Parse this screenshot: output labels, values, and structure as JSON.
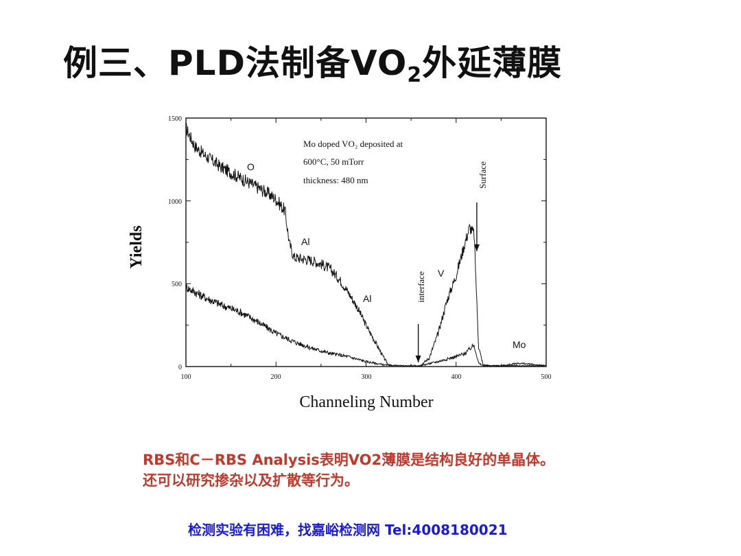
{
  "slide": {
    "title_pre": "例三、PLD法制备VO",
    "title_sub": "2",
    "title_post": "外延薄膜",
    "caption_line1": "RBS和C－RBS Analysis表明VO2薄膜是结构良好的单晶体。",
    "caption_line2": "还可以研究掺杂以及扩散等行为。",
    "footer": "检测实验有困难，找嘉峪检测网 Tel:4008180021",
    "colors": {
      "caption": "#c0392b",
      "footer": "#1a1ad9",
      "title": "#111111"
    }
  },
  "chart_data": {
    "type": "line",
    "title": "",
    "xlabel": "Channeling Number",
    "ylabel": "Yields",
    "xlim": [
      100,
      500
    ],
    "ylim": [
      0,
      1500
    ],
    "x_ticks": [
      "100",
      "200",
      "300",
      "400",
      "500"
    ],
    "y_ticks": [
      "0",
      "500",
      "1000",
      "1500"
    ],
    "annotation_lines": [
      "Mo doped VO₂ deposited at",
      "600°C, 50 mTorr",
      "thickness: 480 nm"
    ],
    "curve_labels": {
      "o": "O",
      "al_upper": "Al",
      "al_lower": "Al",
      "v": "V",
      "mo": "Mo",
      "interface": "interface",
      "surface": "Surface"
    },
    "arrows": {
      "interface_x": 358,
      "surface_x": 423
    },
    "series": [
      {
        "x": [
          100,
          110,
          120,
          130,
          140,
          150,
          160,
          170,
          180,
          190,
          200,
          210,
          215,
          220,
          230,
          240,
          250,
          260,
          270,
          280,
          290,
          300,
          310,
          320,
          325,
          330,
          340,
          350,
          360,
          370,
          380,
          390,
          400,
          410,
          415,
          420,
          425,
          430,
          440,
          460,
          480,
          500
        ],
        "y": [
          1440,
          1330,
          1280,
          1240,
          1200,
          1170,
          1140,
          1110,
          1080,
          1050,
          1010,
          940,
          740,
          660,
          650,
          640,
          620,
          590,
          530,
          450,
          360,
          250,
          150,
          50,
          10,
          0,
          0,
          0,
          5,
          50,
          200,
          400,
          550,
          750,
          840,
          800,
          120,
          10,
          5,
          5,
          5,
          5
        ]
      },
      {
        "x": [
          100,
          110,
          120,
          140,
          160,
          180,
          200,
          220,
          240,
          260,
          280,
          300,
          320,
          340,
          360,
          380,
          400,
          410,
          420,
          425,
          430,
          450,
          470,
          480,
          490,
          500
        ],
        "y": [
          480,
          450,
          420,
          370,
          330,
          270,
          200,
          150,
          110,
          80,
          60,
          30,
          10,
          5,
          5,
          30,
          60,
          80,
          130,
          20,
          5,
          5,
          20,
          15,
          10,
          5
        ]
      }
    ]
  }
}
